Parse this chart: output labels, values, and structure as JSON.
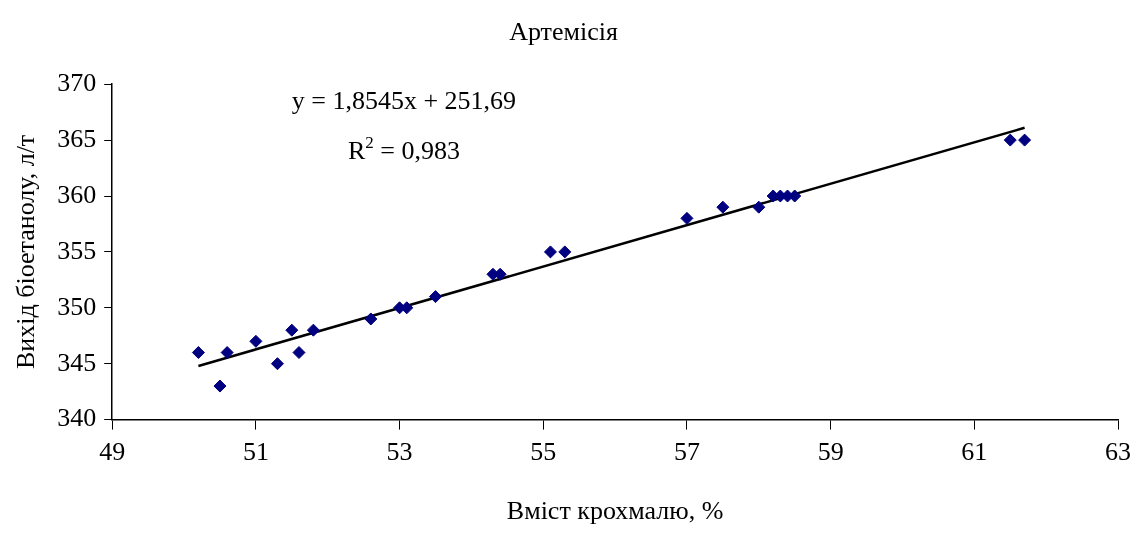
{
  "chart_data": {
    "type": "scatter",
    "title": "Артемісія",
    "xlabel": "Вміст крохмалю, %",
    "ylabel": "Вихід біоетанолу, л/т",
    "xlim": [
      49,
      63
    ],
    "xticks": [
      49,
      51,
      53,
      55,
      57,
      59,
      61,
      63
    ],
    "ylim": [
      340,
      370
    ],
    "yticks": [
      340,
      345,
      350,
      355,
      360,
      365,
      370
    ],
    "grid": false,
    "annotations": [
      "y = 1,8545x + 251,69",
      "R$^{2}$ = 0,983"
    ],
    "series": [
      {
        "marker": "diamond",
        "color": "#000080",
        "x": [
          50.2,
          50.5,
          50.6,
          51.0,
          51.3,
          51.5,
          51.6,
          51.8,
          52.6,
          53.0,
          53.1,
          53.5,
          54.3,
          54.4,
          55.1,
          55.3,
          57.0,
          57.5,
          58.0,
          58.2,
          58.3,
          58.4,
          58.5,
          61.5,
          61.7
        ],
        "values": [
          346,
          343,
          346,
          347,
          345,
          348,
          346,
          348,
          349,
          350,
          350,
          351,
          353,
          353,
          355,
          355,
          358,
          359,
          359,
          360,
          360,
          360,
          360,
          365,
          365
        ]
      },
      {
        "type": "line",
        "marker": "none",
        "color": "#000000",
        "x": [
          50.2,
          61.7
        ],
        "values": [
          344.8,
          366.1
        ]
      }
    ]
  }
}
